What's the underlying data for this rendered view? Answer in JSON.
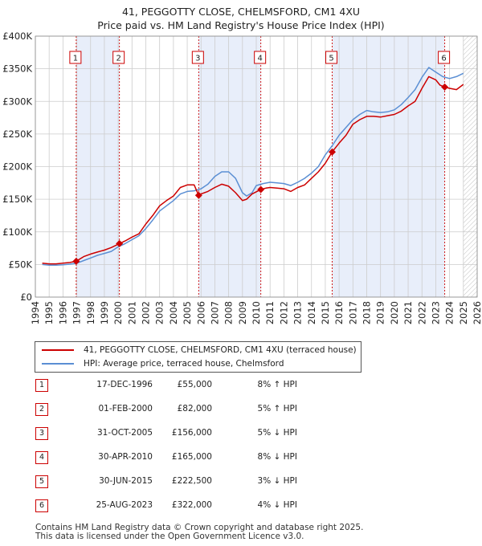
{
  "chart_data": {
    "type": "line",
    "title": "41, PEGGOTTY CLOSE, CHELMSFORD, CM1 4XU",
    "subtitle": "Price paid vs. HM Land Registry's House Price Index (HPI)",
    "xlim": [
      1994,
      2026
    ],
    "ylim": [
      0,
      400000
    ],
    "xticks": [
      1994,
      1995,
      1996,
      1997,
      1998,
      1999,
      2000,
      2001,
      2002,
      2003,
      2004,
      2005,
      2006,
      2007,
      2008,
      2009,
      2010,
      2011,
      2012,
      2013,
      2014,
      2015,
      2016,
      2017,
      2018,
      2019,
      2020,
      2021,
      2022,
      2023,
      2024,
      2025,
      2026
    ],
    "yticks": [
      {
        "value": 0,
        "label": "£0"
      },
      {
        "value": 50000,
        "label": "£50K"
      },
      {
        "value": 100000,
        "label": "£100K"
      },
      {
        "value": 150000,
        "label": "£150K"
      },
      {
        "value": 200000,
        "label": "£200K"
      },
      {
        "value": 250000,
        "label": "£250K"
      },
      {
        "value": 300000,
        "label": "£300K"
      },
      {
        "value": 350000,
        "label": "£350K"
      },
      {
        "value": 400000,
        "label": "£400K"
      }
    ],
    "colors": {
      "property": "#cc0000",
      "hpi": "#5b8fd4",
      "band": "#e8eefa",
      "grid": "#cccccc",
      "future_hatch": "#999999"
    },
    "shaded_spans": [
      [
        1996.96,
        2000.09
      ],
      [
        2005.83,
        2010.33
      ],
      [
        2015.5,
        2023.65
      ]
    ],
    "future_from": 2025.0,
    "series": [
      {
        "name": "41, PEGGOTTY CLOSE, CHELMSFORD, CM1 4XU (terraced house)",
        "color": "#cc0000",
        "x": [
          1994.5,
          1995,
          1995.5,
          1996,
          1996.5,
          1996.96,
          1997.5,
          1998,
          1998.5,
          1999,
          1999.5,
          2000.09,
          2000.5,
          2001,
          2001.5,
          2002,
          2002.5,
          2003,
          2003.5,
          2004,
          2004.5,
          2005,
          2005.5,
          2005.83,
          2006,
          2006.5,
          2007,
          2007.5,
          2008,
          2008.5,
          2009,
          2009.3,
          2009.7,
          2010.33,
          2010.7,
          2011,
          2011.5,
          2012,
          2012.5,
          2013,
          2013.5,
          2014,
          2014.5,
          2015,
          2015.5,
          2016,
          2016.5,
          2017,
          2017.5,
          2018,
          2018.5,
          2019,
          2019.5,
          2020,
          2020.5,
          2021,
          2021.5,
          2022,
          2022.5,
          2023,
          2023.3,
          2023.65,
          2024,
          2024.5,
          2025
        ],
        "values": [
          52000,
          51000,
          51000,
          52000,
          53000,
          55000,
          62000,
          66000,
          69000,
          72000,
          76000,
          82000,
          86000,
          92000,
          97000,
          112000,
          125000,
          140000,
          148000,
          155000,
          168000,
          172000,
          172000,
          156000,
          158000,
          162000,
          168000,
          173000,
          170000,
          160000,
          148000,
          150000,
          158000,
          165000,
          167000,
          168000,
          167000,
          166000,
          162000,
          168000,
          172000,
          182000,
          192000,
          205000,
          222500,
          236000,
          248000,
          265000,
          272000,
          277000,
          277000,
          276000,
          278000,
          280000,
          285000,
          293000,
          300000,
          320000,
          338000,
          333000,
          325000,
          322000,
          320000,
          318000,
          326000
        ]
      },
      {
        "name": "HPI: Average price, terraced house, Chelmsford",
        "color": "#5b8fd4",
        "x": [
          1994.5,
          1995,
          1995.5,
          1996,
          1996.5,
          1997,
          1997.5,
          1998,
          1998.5,
          1999,
          1999.5,
          2000,
          2000.5,
          2001,
          2001.5,
          2002,
          2002.5,
          2003,
          2003.5,
          2004,
          2004.5,
          2005,
          2005.5,
          2006,
          2006.5,
          2007,
          2007.5,
          2008,
          2008.5,
          2009,
          2009.3,
          2009.7,
          2010,
          2010.5,
          2011,
          2011.5,
          2012,
          2012.5,
          2013,
          2013.5,
          2014,
          2014.5,
          2015,
          2015.5,
          2016,
          2016.5,
          2017,
          2017.5,
          2018,
          2018.5,
          2019,
          2019.5,
          2020,
          2020.5,
          2021,
          2021.5,
          2022,
          2022.5,
          2023,
          2023.5,
          2024,
          2024.5,
          2025
        ],
        "values": [
          50000,
          49000,
          49000,
          49500,
          50500,
          52000,
          56000,
          60000,
          64000,
          67000,
          70000,
          77000,
          82000,
          88000,
          94000,
          105000,
          118000,
          132000,
          140000,
          148000,
          158000,
          162000,
          163000,
          166000,
          173000,
          185000,
          192000,
          192000,
          182000,
          160000,
          155000,
          160000,
          171000,
          174000,
          176000,
          175000,
          174000,
          171000,
          176000,
          182000,
          190000,
          200000,
          218000,
          232000,
          248000,
          260000,
          272000,
          280000,
          286000,
          284000,
          283000,
          284000,
          287000,
          295000,
          306000,
          318000,
          337000,
          352000,
          345000,
          338000,
          335000,
          338000,
          343000
        ]
      }
    ],
    "sales": [
      {
        "id": "1",
        "x": 1996.96,
        "y": 55000
      },
      {
        "id": "2",
        "x": 2000.09,
        "y": 82000
      },
      {
        "id": "3",
        "x": 2005.83,
        "y": 156000
      },
      {
        "id": "4",
        "x": 2010.33,
        "y": 165000
      },
      {
        "id": "5",
        "x": 2015.5,
        "y": 222500
      },
      {
        "id": "6",
        "x": 2023.65,
        "y": 322000
      }
    ]
  },
  "legend": {
    "property": "41, PEGGOTTY CLOSE, CHELMSFORD, CM1 4XU (terraced house)",
    "hpi": "HPI: Average price, terraced house, Chelmsford"
  },
  "transactions": [
    {
      "num": "1",
      "date": "17-DEC-1996",
      "price": "£55,000",
      "hpi": "8% ↑ HPI"
    },
    {
      "num": "2",
      "date": "01-FEB-2000",
      "price": "£82,000",
      "hpi": "5% ↑ HPI"
    },
    {
      "num": "3",
      "date": "31-OCT-2005",
      "price": "£156,000",
      "hpi": "5% ↓ HPI"
    },
    {
      "num": "4",
      "date": "30-APR-2010",
      "price": "£165,000",
      "hpi": "8% ↓ HPI"
    },
    {
      "num": "5",
      "date": "30-JUN-2015",
      "price": "£222,500",
      "hpi": "3% ↓ HPI"
    },
    {
      "num": "6",
      "date": "25-AUG-2023",
      "price": "£322,000",
      "hpi": "4% ↓ HPI"
    }
  ],
  "footer": {
    "line1": "Contains HM Land Registry data © Crown copyright and database right 2025.",
    "line2": "This data is licensed under the Open Government Licence v3.0."
  }
}
